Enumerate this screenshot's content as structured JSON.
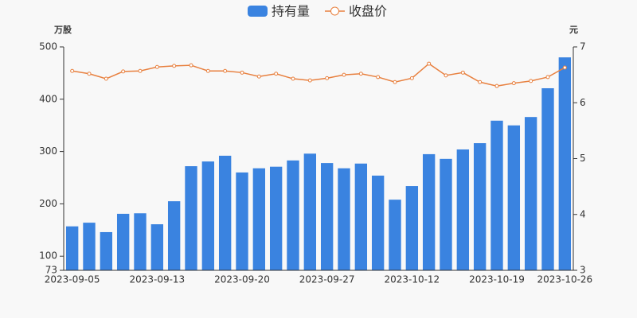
{
  "chart_data": {
    "type": "bar",
    "categories": [
      "2023-09-05",
      null,
      null,
      null,
      null,
      "2023-09-13",
      null,
      null,
      null,
      null,
      "2023-09-20",
      null,
      null,
      null,
      null,
      "2023-09-27",
      null,
      null,
      null,
      null,
      "2023-10-12",
      null,
      null,
      null,
      null,
      "2023-10-19",
      null,
      null,
      null,
      "2023-10-26"
    ],
    "series": [
      {
        "name": "持有量",
        "type": "bar",
        "color": "#3a83e0",
        "values": [
          157,
          164,
          146,
          181,
          182,
          161,
          205,
          272,
          281,
          292,
          260,
          268,
          271,
          283,
          296,
          278,
          268,
          277,
          254,
          208,
          234,
          295,
          286,
          304,
          316,
          359,
          350,
          366,
          421,
          480
        ]
      },
      {
        "name": "收盘价",
        "type": "line",
        "axis": "y2",
        "color": "#e8803f",
        "values": [
          6.57,
          6.52,
          6.43,
          6.56,
          6.57,
          6.64,
          6.66,
          6.67,
          6.57,
          6.57,
          6.54,
          6.47,
          6.52,
          6.43,
          6.4,
          6.44,
          6.5,
          6.52,
          6.46,
          6.37,
          6.44,
          6.7,
          6.49,
          6.54,
          6.37,
          6.3,
          6.35,
          6.39,
          6.46,
          6.63
        ]
      }
    ],
    "y_label": "万股",
    "y2_label": "元",
    "ylim": [
      73,
      500
    ],
    "yticks": [
      73,
      100,
      200,
      300,
      400,
      500
    ],
    "y2lim": [
      3,
      7
    ],
    "y2ticks": [
      3,
      4,
      5,
      6,
      7
    ]
  }
}
